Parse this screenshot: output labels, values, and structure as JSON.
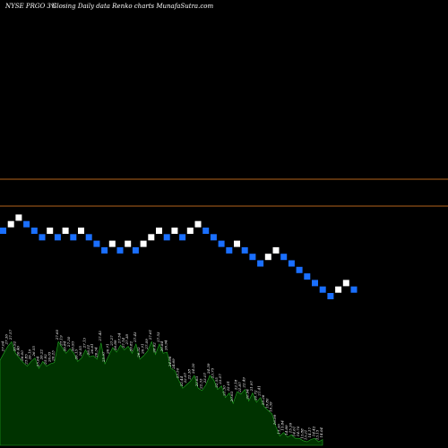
{
  "header": {
    "ticker": "NYSE PRGO 3%",
    "subtitle": "Closing Daily data  Renko  charts MunafaSutra.com"
  },
  "colors": {
    "background": "#000000",
    "up_brick": "#ffffff",
    "down_brick": "#1a6fff",
    "resistance_line": "#b5651d",
    "volume_fill": "#003300",
    "volume_stroke": "#22aa22"
  },
  "chart_data": [
    {
      "type": "renko",
      "title": "NYSE PRGO 3%",
      "subtitle": "Closing Daily data  Renko  charts MunafaSutra.com",
      "grid": false,
      "legend": "none",
      "bricks": [
        {
          "dir": "down",
          "level": 16
        },
        {
          "dir": "up",
          "level": 17
        },
        {
          "dir": "up",
          "level": 18
        },
        {
          "dir": "down",
          "level": 17
        },
        {
          "dir": "down",
          "level": 16
        },
        {
          "dir": "down",
          "level": 15
        },
        {
          "dir": "up",
          "level": 16
        },
        {
          "dir": "down",
          "level": 15
        },
        {
          "dir": "up",
          "level": 16
        },
        {
          "dir": "down",
          "level": 15
        },
        {
          "dir": "up",
          "level": 16
        },
        {
          "dir": "down",
          "level": 15
        },
        {
          "dir": "down",
          "level": 14
        },
        {
          "dir": "down",
          "level": 13
        },
        {
          "dir": "up",
          "level": 14
        },
        {
          "dir": "down",
          "level": 13
        },
        {
          "dir": "up",
          "level": 14
        },
        {
          "dir": "down",
          "level": 13
        },
        {
          "dir": "up",
          "level": 14
        },
        {
          "dir": "up",
          "level": 15
        },
        {
          "dir": "up",
          "level": 16
        },
        {
          "dir": "down",
          "level": 15
        },
        {
          "dir": "up",
          "level": 16
        },
        {
          "dir": "down",
          "level": 15
        },
        {
          "dir": "up",
          "level": 16
        },
        {
          "dir": "up",
          "level": 17
        },
        {
          "dir": "down",
          "level": 16
        },
        {
          "dir": "down",
          "level": 15
        },
        {
          "dir": "down",
          "level": 14
        },
        {
          "dir": "down",
          "level": 13
        },
        {
          "dir": "up",
          "level": 14
        },
        {
          "dir": "down",
          "level": 13
        },
        {
          "dir": "down",
          "level": 12
        },
        {
          "dir": "down",
          "level": 11
        },
        {
          "dir": "up",
          "level": 12
        },
        {
          "dir": "up",
          "level": 13
        },
        {
          "dir": "down",
          "level": 12
        },
        {
          "dir": "down",
          "level": 11
        },
        {
          "dir": "down",
          "level": 10
        },
        {
          "dir": "down",
          "level": 9
        },
        {
          "dir": "down",
          "level": 8
        },
        {
          "dir": "down",
          "level": 7
        },
        {
          "dir": "down",
          "level": 6
        },
        {
          "dir": "up",
          "level": 7
        },
        {
          "dir": "up",
          "level": 8
        },
        {
          "dir": "down",
          "level": 7
        }
      ],
      "reference_lines": [
        "upper",
        "lower"
      ],
      "volume": {
        "labels": [
          "26.55",
          "27.04",
          "27.36",
          "27.57",
          "26.92",
          "26.46",
          "26.00",
          "25.83",
          "26.19",
          "26.55",
          "25.64",
          "26.22",
          "25.92",
          "26.05",
          "26.23",
          "27.60",
          "27.19",
          "26.84",
          "27.30",
          "26.93",
          "26.13",
          "26.55",
          "27.13",
          "26.51",
          "26.61",
          "26.34",
          "27.43",
          "25.97",
          "26.71",
          "27.27",
          "26.89",
          "27.54",
          "27.14",
          "27.38",
          "26.82",
          "27.43",
          "26.32",
          "26.71",
          "27.09",
          "27.61",
          "26.62",
          "27.53",
          "26.84",
          "26.94",
          "24.98",
          "24.69",
          "23.50",
          "22.44",
          "22.97",
          "23.38",
          "24.20",
          "22.63",
          "22.33",
          "23.07",
          "24.39",
          "23.75",
          "22.55",
          "23.07",
          "21.30",
          "22.01",
          "20.63",
          "22.18",
          "21.87",
          "22.49",
          "20.94",
          "21.97",
          "20.72",
          "21.41",
          "20.26",
          "19.80",
          "19.39",
          "16.99",
          "15.26",
          "15.84",
          "14.89",
          "15.36",
          "14.61",
          "14.70",
          "13.88",
          "13.21",
          "14.17",
          "14.42",
          "13.15",
          "14.04"
        ],
        "values": [
          73,
          79,
          85,
          89,
          79,
          75,
          71,
          68,
          72,
          75,
          66,
          72,
          68,
          70,
          71,
          89,
          84,
          79,
          83,
          79,
          72,
          75,
          82,
          76,
          77,
          74,
          88,
          70,
          77,
          84,
          80,
          86,
          82,
          85,
          79,
          87,
          74,
          77,
          81,
          89,
          78,
          87,
          79,
          80,
          66,
          64,
          56,
          49,
          52,
          55,
          60,
          49,
          47,
          52,
          60,
          56,
          48,
          51,
          41,
          45,
          36,
          46,
          44,
          48,
          38,
          45,
          37,
          41,
          33,
          30,
          27,
          16,
          8,
          11,
          7,
          9,
          6,
          6,
          4,
          3,
          5,
          6,
          3,
          5
        ]
      }
    }
  ]
}
